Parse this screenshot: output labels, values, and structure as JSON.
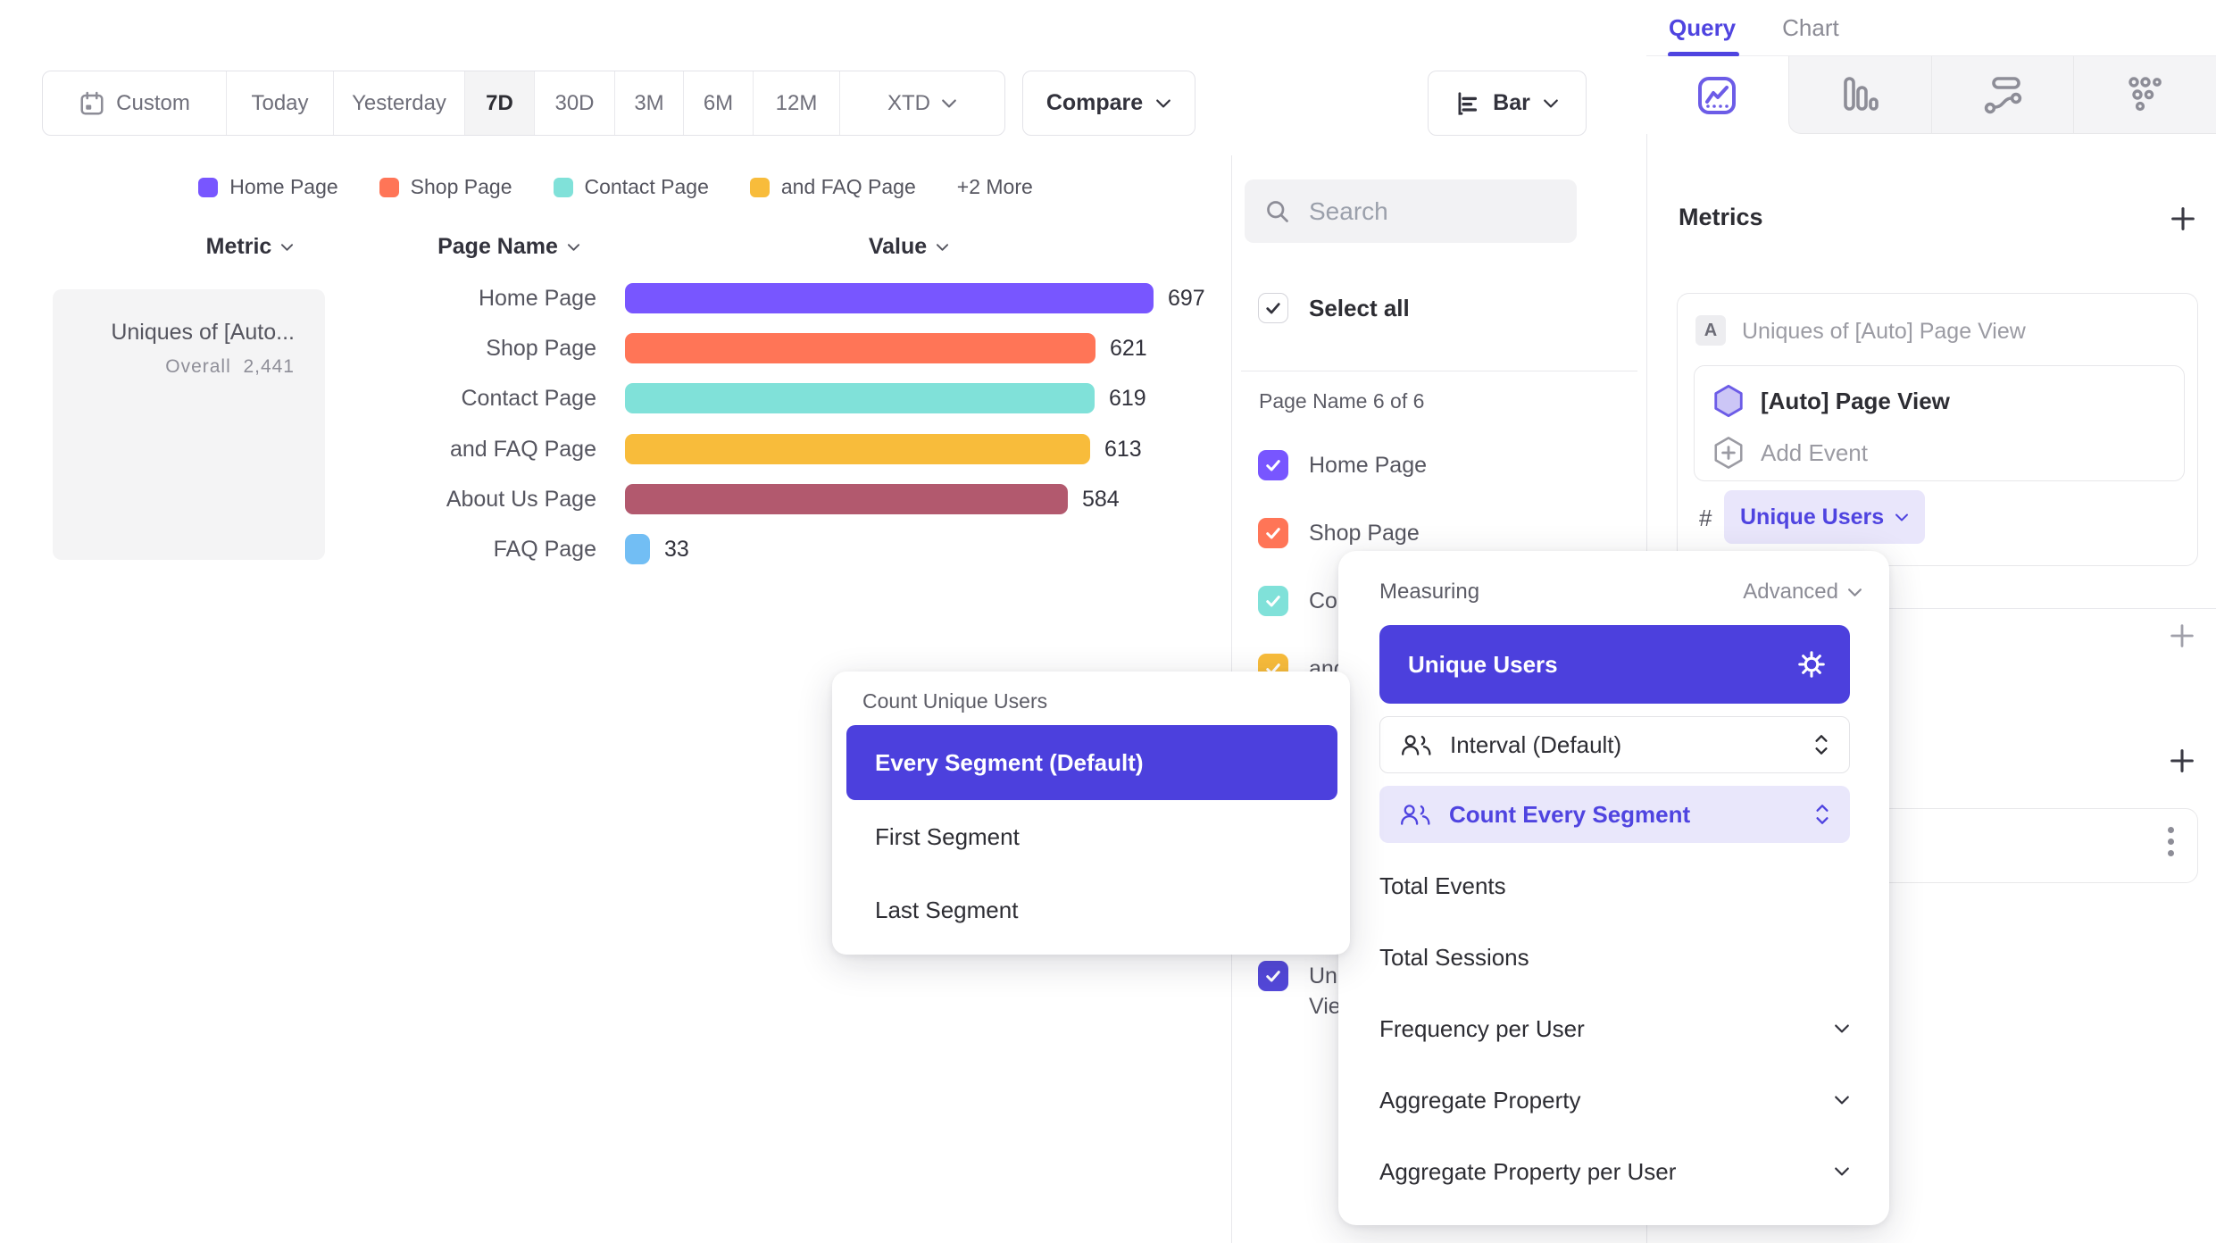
{
  "toolbar": {
    "date_ranges": [
      "Custom",
      "Today",
      "Yesterday",
      "7D",
      "30D",
      "3M",
      "6M",
      "12M",
      "XTD"
    ],
    "active_range": "7D",
    "compare_label": "Compare",
    "chart_type_label": "Bar"
  },
  "legend": {
    "items": [
      {
        "label": "Home Page",
        "color": "#7856FF"
      },
      {
        "label": "Shop Page",
        "color": "#FF7557"
      },
      {
        "label": "Contact Page",
        "color": "#80E1D9"
      },
      {
        "label": "and FAQ Page",
        "color": "#F8BC3B"
      }
    ],
    "more_label": "+2 More"
  },
  "table_headers": {
    "metric": "Metric",
    "page_name": "Page Name",
    "value": "Value"
  },
  "metric_card": {
    "title": "Uniques of [Auto...",
    "overall_label": "Overall",
    "overall_value": "2,441"
  },
  "chart_data": {
    "type": "bar",
    "orientation": "horizontal",
    "title": "",
    "metric": "Uniques of [Auto] Page View",
    "overall_total": 2441,
    "categories": [
      "Home Page",
      "Shop Page",
      "Contact Page",
      "and FAQ Page",
      "About Us Page",
      "FAQ Page"
    ],
    "values": [
      697,
      621,
      619,
      613,
      584,
      33
    ],
    "colors": [
      "#7856FF",
      "#FF7557",
      "#80E1D9",
      "#F8BC3B",
      "#B2596E",
      "#72BEF4"
    ],
    "xlim": [
      0,
      697
    ],
    "value_labels_shown": true,
    "legend_position": "top",
    "grid": false
  },
  "filter_panel": {
    "search_placeholder": "Search",
    "select_all_label": "Select all",
    "group_label": "Page Name 6 of 6",
    "items": [
      {
        "label": "Home Page",
        "color": "#7856FF",
        "checked": true
      },
      {
        "label": "Shop Page",
        "color": "#FF7557",
        "checked": true
      },
      {
        "label": "Contact Page",
        "color": "#80E1D9",
        "checked": true
      },
      {
        "label": "and FAQ Page",
        "color": "#F8BC3B",
        "checked": true
      },
      {
        "label": "About Us Page",
        "color": "#B2596E",
        "checked": true
      },
      {
        "label": "FAQ Page",
        "color": "#72BEF4",
        "checked": true
      }
    ],
    "metric_item": {
      "label": "Uniques of [Auto] Page View",
      "color": "#5348D9",
      "checked": true
    }
  },
  "query_panel": {
    "tabs": {
      "query": "Query",
      "chart": "Chart"
    },
    "active_tab": "Query",
    "metrics_title": "Metrics",
    "metric_badge": "A",
    "metric_row_title": "Uniques of [Auto] Page View",
    "event_name": "[Auto] Page View",
    "add_event_label": "Add Event",
    "hash_symbol": "#",
    "measurement_pill": "Unique Users"
  },
  "measuring_popup": {
    "title": "Measuring",
    "advanced_label": "Advanced",
    "selected_option": "Unique Users",
    "interval_option": "Interval (Default)",
    "count_option": "Count Every Segment",
    "plain_options": [
      "Total Events",
      "Total Sessions"
    ],
    "expandable_options": [
      "Frequency per User",
      "Aggregate Property",
      "Aggregate Property per User"
    ]
  },
  "count_popup": {
    "title": "Count Unique Users",
    "selected_option": "Every Segment (Default)",
    "options": [
      "First Segment",
      "Last Segment"
    ]
  },
  "colors": {
    "ui_purple": "#4C40DD",
    "ui_purple_text": "#4F44E0",
    "ui_purple_light": "#E9E7FB",
    "chart_purple": "#7856FF"
  }
}
